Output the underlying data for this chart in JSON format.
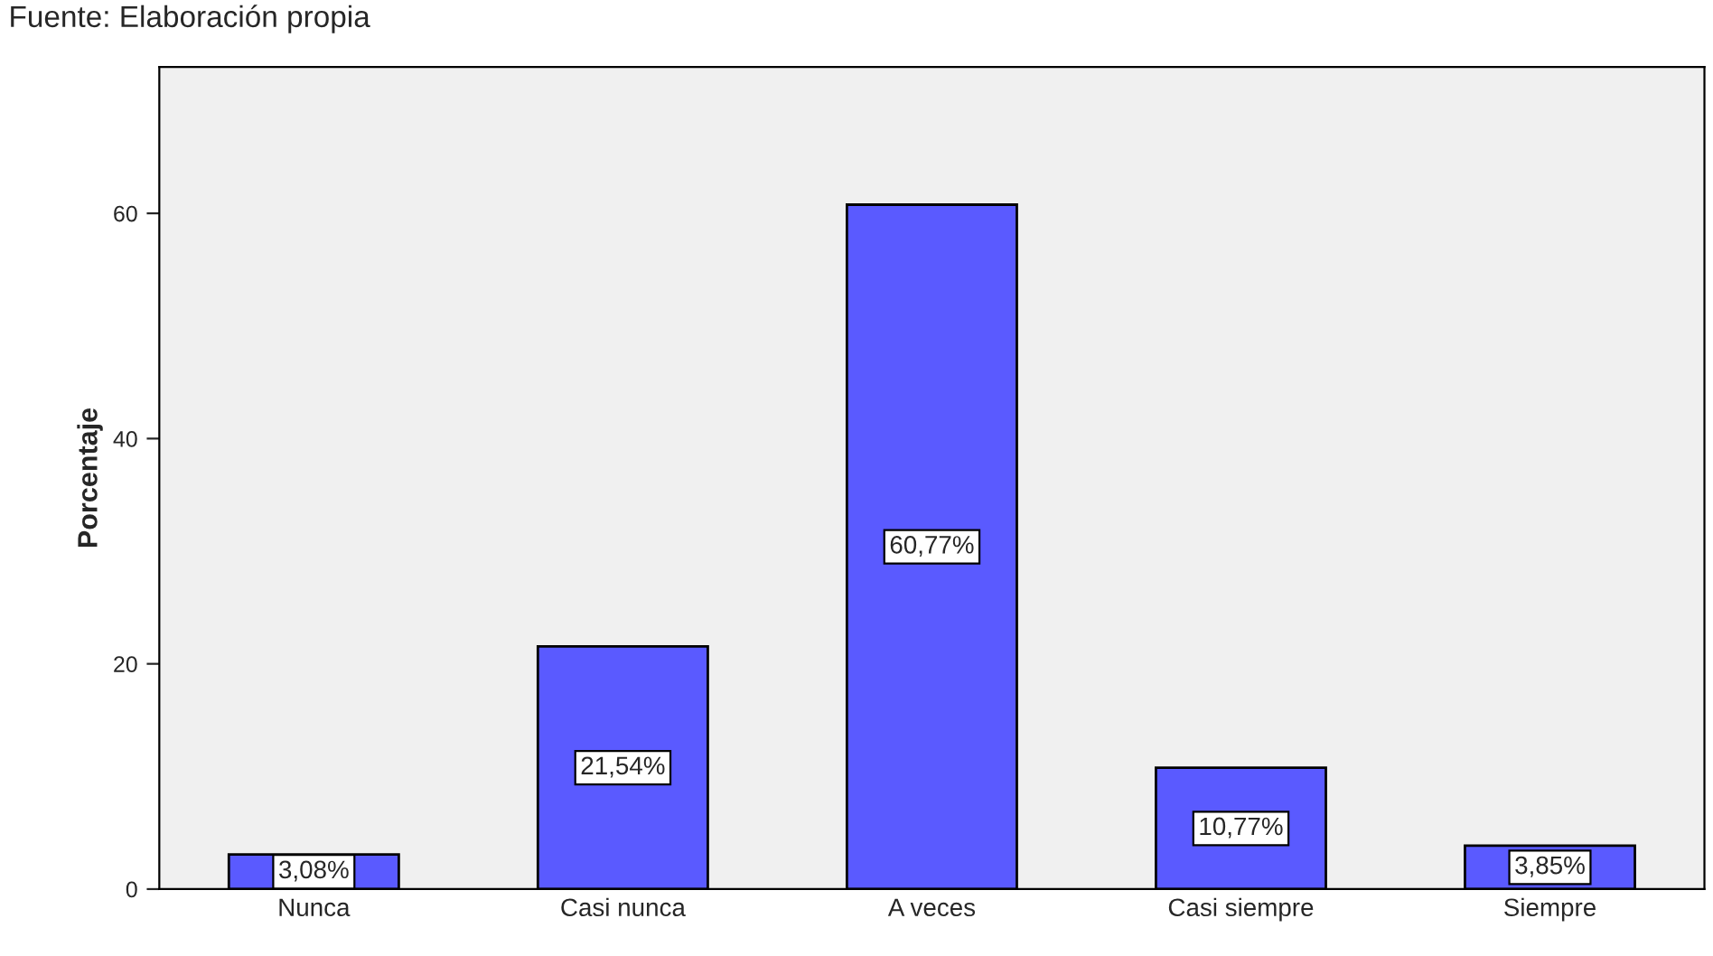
{
  "chart_data": {
    "type": "bar",
    "ylabel": "Porcentaje",
    "annotations": [
      "Fuente: Elaboración propia"
    ],
    "categories": [
      "Nunca",
      "Casi nunca",
      "A veces",
      "Casi siempre",
      "Siempre"
    ],
    "values": [
      3.08,
      21.54,
      60.77,
      10.77,
      3.85
    ],
    "value_labels": [
      "3,08%",
      "21,54%",
      "60,77%",
      "10,77%",
      "3,85%"
    ],
    "color": "#5a5aff",
    "ylim": [
      0,
      73
    ],
    "yticks": [
      0,
      20,
      40,
      60
    ],
    "grid": false,
    "legend": false
  }
}
